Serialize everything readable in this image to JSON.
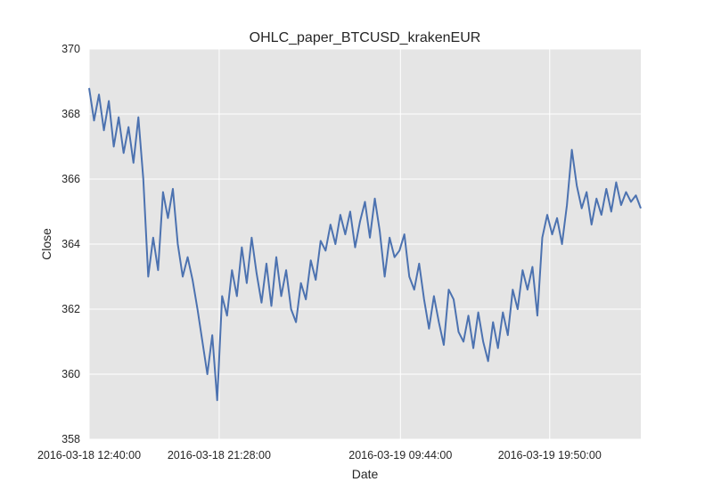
{
  "chart_data": {
    "type": "line",
    "title": "OHLC_paper_BTCUSD_krakenEUR",
    "xlabel": "Date",
    "ylabel": "Close",
    "ylim": [
      358,
      370
    ],
    "y_ticks": [
      "358",
      "360",
      "362",
      "364",
      "366",
      "368",
      "370"
    ],
    "x_range": [
      "2016-03-18 12:40:00",
      "2016-03-20 02:00:00"
    ],
    "x_ticks": [
      "2016-03-18 12:40:00",
      "2016-03-18 21:28:00",
      "2016-03-19 09:44:00",
      "2016-03-19 19:50:00"
    ],
    "grid": true,
    "background_color": "#e5e5e5",
    "grid_color": "#ffffff",
    "series": [
      {
        "color": "#4c72b0",
        "x": [
          "2016-03-18 12:40:00",
          "2016-03-18 13:00:00",
          "2016-03-18 13:20:00",
          "2016-03-18 13:40:00",
          "2016-03-18 14:00:00",
          "2016-03-18 14:20:00",
          "2016-03-18 14:40:00",
          "2016-03-18 15:00:00",
          "2016-03-18 15:20:00",
          "2016-03-18 15:40:00",
          "2016-03-18 16:00:00",
          "2016-03-18 16:20:00",
          "2016-03-18 16:40:00",
          "2016-03-18 17:00:00",
          "2016-03-18 17:20:00",
          "2016-03-18 17:40:00",
          "2016-03-18 18:00:00",
          "2016-03-18 18:20:00",
          "2016-03-18 18:40:00",
          "2016-03-18 19:00:00",
          "2016-03-18 19:20:00",
          "2016-03-18 19:40:00",
          "2016-03-18 20:00:00",
          "2016-03-18 20:20:00",
          "2016-03-18 20:40:00",
          "2016-03-18 21:00:00",
          "2016-03-18 21:20:00",
          "2016-03-18 21:40:00",
          "2016-03-18 22:00:00",
          "2016-03-18 22:20:00",
          "2016-03-18 22:40:00",
          "2016-03-18 23:00:00",
          "2016-03-18 23:20:00",
          "2016-03-18 23:40:00",
          "2016-03-19 00:00:00",
          "2016-03-19 00:20:00",
          "2016-03-19 00:40:00",
          "2016-03-19 01:00:00",
          "2016-03-19 01:20:00",
          "2016-03-19 01:40:00",
          "2016-03-19 02:00:00",
          "2016-03-19 02:20:00",
          "2016-03-19 02:40:00",
          "2016-03-19 03:00:00",
          "2016-03-19 03:20:00",
          "2016-03-19 03:40:00",
          "2016-03-19 04:00:00",
          "2016-03-19 04:20:00",
          "2016-03-19 04:40:00",
          "2016-03-19 05:00:00",
          "2016-03-19 05:20:00",
          "2016-03-19 05:40:00",
          "2016-03-19 06:00:00",
          "2016-03-19 06:20:00",
          "2016-03-19 06:40:00",
          "2016-03-19 07:00:00",
          "2016-03-19 07:20:00",
          "2016-03-19 07:40:00",
          "2016-03-19 08:00:00",
          "2016-03-19 08:20:00",
          "2016-03-19 08:40:00",
          "2016-03-19 09:00:00",
          "2016-03-19 09:20:00",
          "2016-03-19 09:40:00",
          "2016-03-19 10:00:00",
          "2016-03-19 10:20:00",
          "2016-03-19 10:40:00",
          "2016-03-19 11:00:00",
          "2016-03-19 11:20:00",
          "2016-03-19 11:40:00",
          "2016-03-19 12:00:00",
          "2016-03-19 12:20:00",
          "2016-03-19 12:40:00",
          "2016-03-19 13:00:00",
          "2016-03-19 13:20:00",
          "2016-03-19 13:40:00",
          "2016-03-19 14:00:00",
          "2016-03-19 14:20:00",
          "2016-03-19 14:40:00",
          "2016-03-19 15:00:00",
          "2016-03-19 15:20:00",
          "2016-03-19 15:40:00",
          "2016-03-19 16:00:00",
          "2016-03-19 16:20:00",
          "2016-03-19 16:40:00",
          "2016-03-19 17:00:00",
          "2016-03-19 17:20:00",
          "2016-03-19 17:40:00",
          "2016-03-19 18:00:00",
          "2016-03-19 18:20:00",
          "2016-03-19 18:40:00",
          "2016-03-19 19:00:00",
          "2016-03-19 19:20:00",
          "2016-03-19 19:40:00",
          "2016-03-19 20:00:00",
          "2016-03-19 20:20:00",
          "2016-03-19 20:40:00",
          "2016-03-19 21:00:00",
          "2016-03-19 21:20:00",
          "2016-03-19 21:40:00",
          "2016-03-19 22:00:00",
          "2016-03-19 22:20:00",
          "2016-03-19 22:40:00",
          "2016-03-19 23:00:00",
          "2016-03-19 23:20:00",
          "2016-03-19 23:40:00",
          "2016-03-20 00:00:00",
          "2016-03-20 00:20:00",
          "2016-03-20 00:40:00",
          "2016-03-20 01:00:00",
          "2016-03-20 01:20:00",
          "2016-03-20 01:40:00",
          "2016-03-20 02:00:00"
        ],
        "values": [
          368.8,
          367.8,
          368.6,
          367.5,
          368.4,
          367.0,
          367.9,
          366.8,
          367.6,
          366.5,
          367.9,
          366.0,
          363.0,
          364.2,
          363.2,
          365.6,
          364.8,
          365.7,
          364.0,
          363.0,
          363.6,
          362.9,
          362.0,
          361.0,
          360.0,
          361.2,
          359.2,
          362.4,
          361.8,
          363.2,
          362.4,
          363.9,
          362.8,
          364.2,
          363.1,
          362.2,
          363.4,
          362.1,
          363.6,
          362.4,
          363.2,
          362.0,
          361.6,
          362.8,
          362.3,
          363.5,
          362.9,
          364.1,
          363.8,
          364.6,
          364.0,
          364.9,
          364.3,
          365.0,
          363.9,
          364.7,
          365.3,
          364.2,
          365.4,
          364.4,
          363.0,
          364.2,
          363.6,
          363.8,
          364.3,
          363.0,
          362.6,
          363.4,
          362.3,
          361.4,
          362.4,
          361.6,
          360.9,
          362.6,
          362.3,
          361.3,
          361.0,
          361.8,
          360.8,
          361.9,
          361.0,
          360.4,
          361.6,
          360.8,
          361.9,
          361.2,
          362.6,
          362.0,
          363.2,
          362.6,
          363.3,
          361.8,
          364.2,
          364.9,
          364.3,
          364.8,
          364.0,
          365.2,
          366.9,
          365.8,
          365.1,
          365.6,
          364.6,
          365.4,
          364.9,
          365.7,
          365.0,
          365.9,
          365.2,
          365.6,
          365.3,
          365.5,
          365.1
        ]
      }
    ]
  }
}
